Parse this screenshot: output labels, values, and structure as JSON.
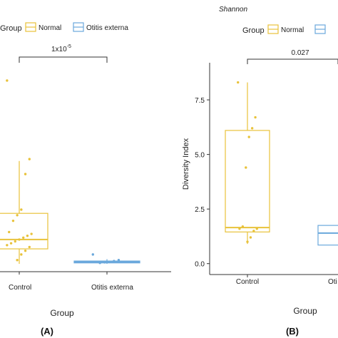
{
  "chart_data": [
    {
      "type": "box",
      "panel_label": "(A)",
      "title": "",
      "legend": {
        "title": "Group",
        "entries": [
          "Normal",
          "Otitis externa"
        ],
        "placement": "top-left"
      },
      "xlabel": "Group",
      "ylabel": "",
      "categories": [
        "Control",
        "Otitis externa"
      ],
      "significance": {
        "label": "1x10",
        "exponent": "-5",
        "between": [
          "Control",
          "Otitis externa"
        ]
      },
      "ylim": [
        0,
        10.6
      ],
      "series": [
        {
          "name": "Normal",
          "color": "#e8c23a",
          "box": {
            "q1": 0.8,
            "median": 1.3,
            "q3": 2.7
          },
          "whisker": [
            0.0,
            5.5
          ],
          "points": [
            9.8,
            5.6,
            4.8,
            2.9,
            2.6,
            2.3,
            1.7,
            1.6,
            1.5,
            1.4,
            1.3,
            1.2,
            1.1,
            1.0,
            0.9,
            0.7,
            0.5,
            0.2
          ]
        },
        {
          "name": "Otitis externa",
          "color": "#6aa8dc",
          "box": {
            "q1": 0.05,
            "median": 0.1,
            "q3": 0.15
          },
          "whisker": [
            0.0,
            0.25
          ],
          "points": [
            0.5,
            0.2,
            0.15,
            0.1,
            0.08,
            0.05
          ]
        }
      ]
    },
    {
      "type": "box",
      "panel_label": "(B)",
      "title": "Shannon",
      "legend": {
        "title": "Group",
        "entries": [
          "Normal",
          "Otitis externa"
        ],
        "placement": "top-left"
      },
      "xlabel": "Group",
      "ylabel": "Diversity Index",
      "yticks": [
        0.0,
        2.5,
        5.0,
        7.5
      ],
      "ytick_labels": [
        "0.0",
        "2.5",
        "5.0",
        "7.5"
      ],
      "categories": [
        "Control",
        "Oti"
      ],
      "significance": {
        "label": "0.027",
        "between": [
          "Control",
          "Otitis externa"
        ]
      },
      "ylim": [
        -0.5,
        9.2
      ],
      "series": [
        {
          "name": "Normal",
          "color": "#e8c23a",
          "box": {
            "q1": 1.45,
            "median": 1.65,
            "q3": 6.1
          },
          "whisker": [
            0.9,
            8.3
          ],
          "points": [
            8.3,
            6.7,
            6.2,
            5.8,
            4.4,
            1.7,
            1.6,
            1.6,
            1.5,
            1.2,
            1.0
          ]
        },
        {
          "name": "Otitis externa",
          "color": "#6aa8dc",
          "box": {
            "q1": 0.85,
            "median": 1.4,
            "q3": 1.75
          },
          "whisker": [
            0.85,
            1.75
          ],
          "points": []
        }
      ]
    }
  ]
}
